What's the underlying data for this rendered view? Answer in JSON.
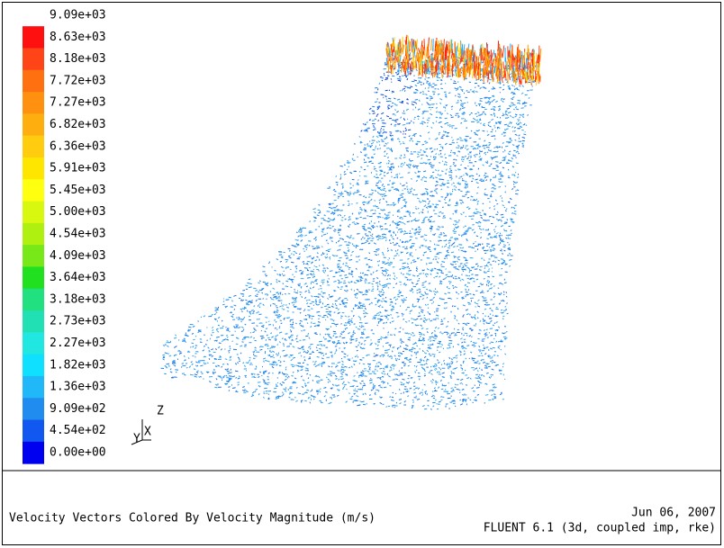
{
  "legend": {
    "labels": [
      "9.09e+03",
      "8.63e+03",
      "8.18e+03",
      "7.72e+03",
      "7.27e+03",
      "6.82e+03",
      "6.36e+03",
      "5.91e+03",
      "5.45e+03",
      "5.00e+03",
      "4.54e+03",
      "4.09e+03",
      "3.64e+03",
      "3.18e+03",
      "2.73e+03",
      "2.27e+03",
      "1.82e+03",
      "1.36e+03",
      "9.09e+02",
      "4.54e+02",
      "0.00e+00"
    ],
    "colors": [
      "#ff1010",
      "#ff4418",
      "#ff7010",
      "#ff9010",
      "#ffae10",
      "#ffcc10",
      "#ffe600",
      "#ffff10",
      "#d8f810",
      "#b0f010",
      "#78e818",
      "#20e020",
      "#20e080",
      "#20e0b4",
      "#20e8e0",
      "#10e0ff",
      "#20b8f8",
      "#208cf0",
      "#1058f0",
      "#0000f0"
    ]
  },
  "axes": {
    "z": "Z",
    "x": "X",
    "y": "Y"
  },
  "footer": {
    "title": "Velocity Vectors Colored By Velocity Magnitude (m/s)",
    "date": "Jun 06, 2007",
    "version": "FLUENT 6.1 (3d, coupled imp, rke)"
  }
}
